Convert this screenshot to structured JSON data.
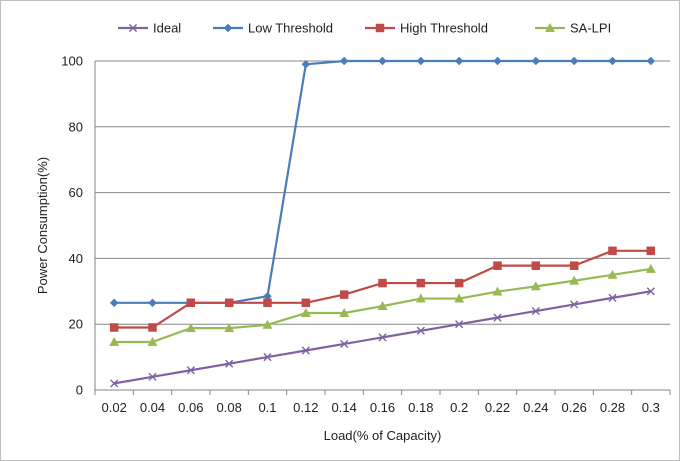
{
  "chart_data": {
    "type": "line",
    "title": "",
    "xlabel": "Load(% of Capacity)",
    "ylabel": "Power Consumption(%)",
    "categories": [
      "0.02",
      "0.04",
      "0.06",
      "0.08",
      "0.1",
      "0.12",
      "0.14",
      "0.16",
      "0.18",
      "0.2",
      "0.22",
      "0.24",
      "0.26",
      "0.28",
      "0.3"
    ],
    "ylim": [
      0,
      100
    ],
    "yticks": [
      "0",
      "20",
      "40",
      "60",
      "80",
      "100"
    ],
    "grid": true,
    "legend": "top",
    "series": [
      {
        "name": "Ideal",
        "color": "#7f62a1",
        "marker": "x",
        "values": [
          2,
          4,
          6,
          8,
          10,
          12,
          14,
          16,
          18,
          20,
          22,
          24,
          26,
          28,
          30
        ]
      },
      {
        "name": "Low Threshold",
        "color": "#4a7ebb",
        "marker": "diamond",
        "values": [
          26.5,
          26.5,
          26.5,
          26.5,
          28.5,
          99,
          100,
          100,
          100,
          100,
          100,
          100,
          100,
          100,
          100
        ]
      },
      {
        "name": "High Threshold",
        "color": "#be4b48",
        "marker": "square",
        "values": [
          19,
          19,
          26.5,
          26.5,
          26.5,
          26.5,
          29,
          32.5,
          32.5,
          32.5,
          37.8,
          37.8,
          37.8,
          42.3,
          42.3
        ]
      },
      {
        "name": "SA-LPI",
        "color": "#98b954",
        "marker": "triangle",
        "values": [
          14.6,
          14.6,
          18.8,
          18.8,
          19.8,
          23.4,
          23.4,
          25.5,
          27.8,
          27.8,
          29.9,
          31.5,
          33.2,
          35,
          36.8
        ]
      }
    ]
  }
}
